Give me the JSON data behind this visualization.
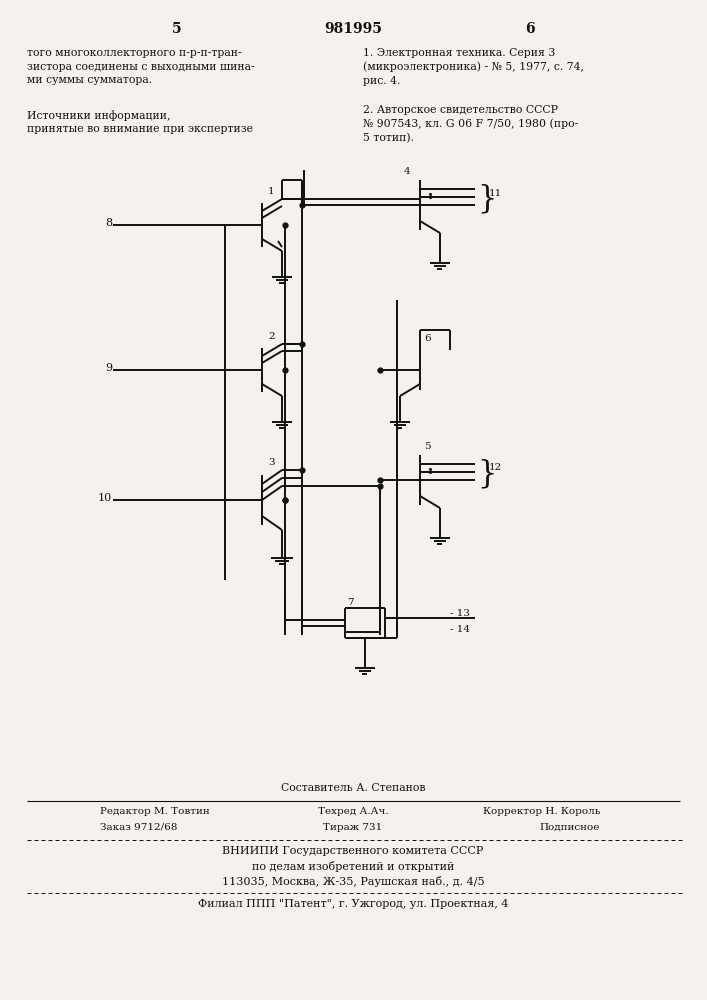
{
  "bg_color": "#f5f2ee",
  "page_number_left": "5",
  "page_number_center": "981995",
  "page_number_right": "6",
  "text_left": "того многоколлекторного п-р-п-тран-\nзистора соединены с выходными шина-\nми суммы сумматора.",
  "text_left2": "Источники информации,\nпринятые во внимание при экспертизе",
  "text_right1": "1. Электронная техника. Серия 3\n(микроэлектроника) - № 5, 1977, с. 74,\nрис. 4.",
  "text_right2": "2. Авторское свидетельство СССР\n№ 907543, кл. G 06 F 7/50, 1980 (про-\n5 тотип).",
  "footer_line1": "Составитель А. Степанов",
  "footer_line2_left": "Редактор М. Товтин",
  "footer_line2_center": "Техред А.Ач.",
  "footer_line2_right": "Корректор Н. Король",
  "footer_line3_left": "Заказ 9712/68",
  "footer_line3_center": "Тираж 731",
  "footer_line3_right": "Подписное",
  "footer_line4": "ВНИИПИ Государственного комитета СССР",
  "footer_line5": "по делам изобретений и открытий",
  "footer_line6": "113035, Москва, Ж-35, Раушская наб., д. 4/5",
  "footer_line7": "Филиал ППП \"Патент\", г. Ужгород, ул. Проектная, 4"
}
